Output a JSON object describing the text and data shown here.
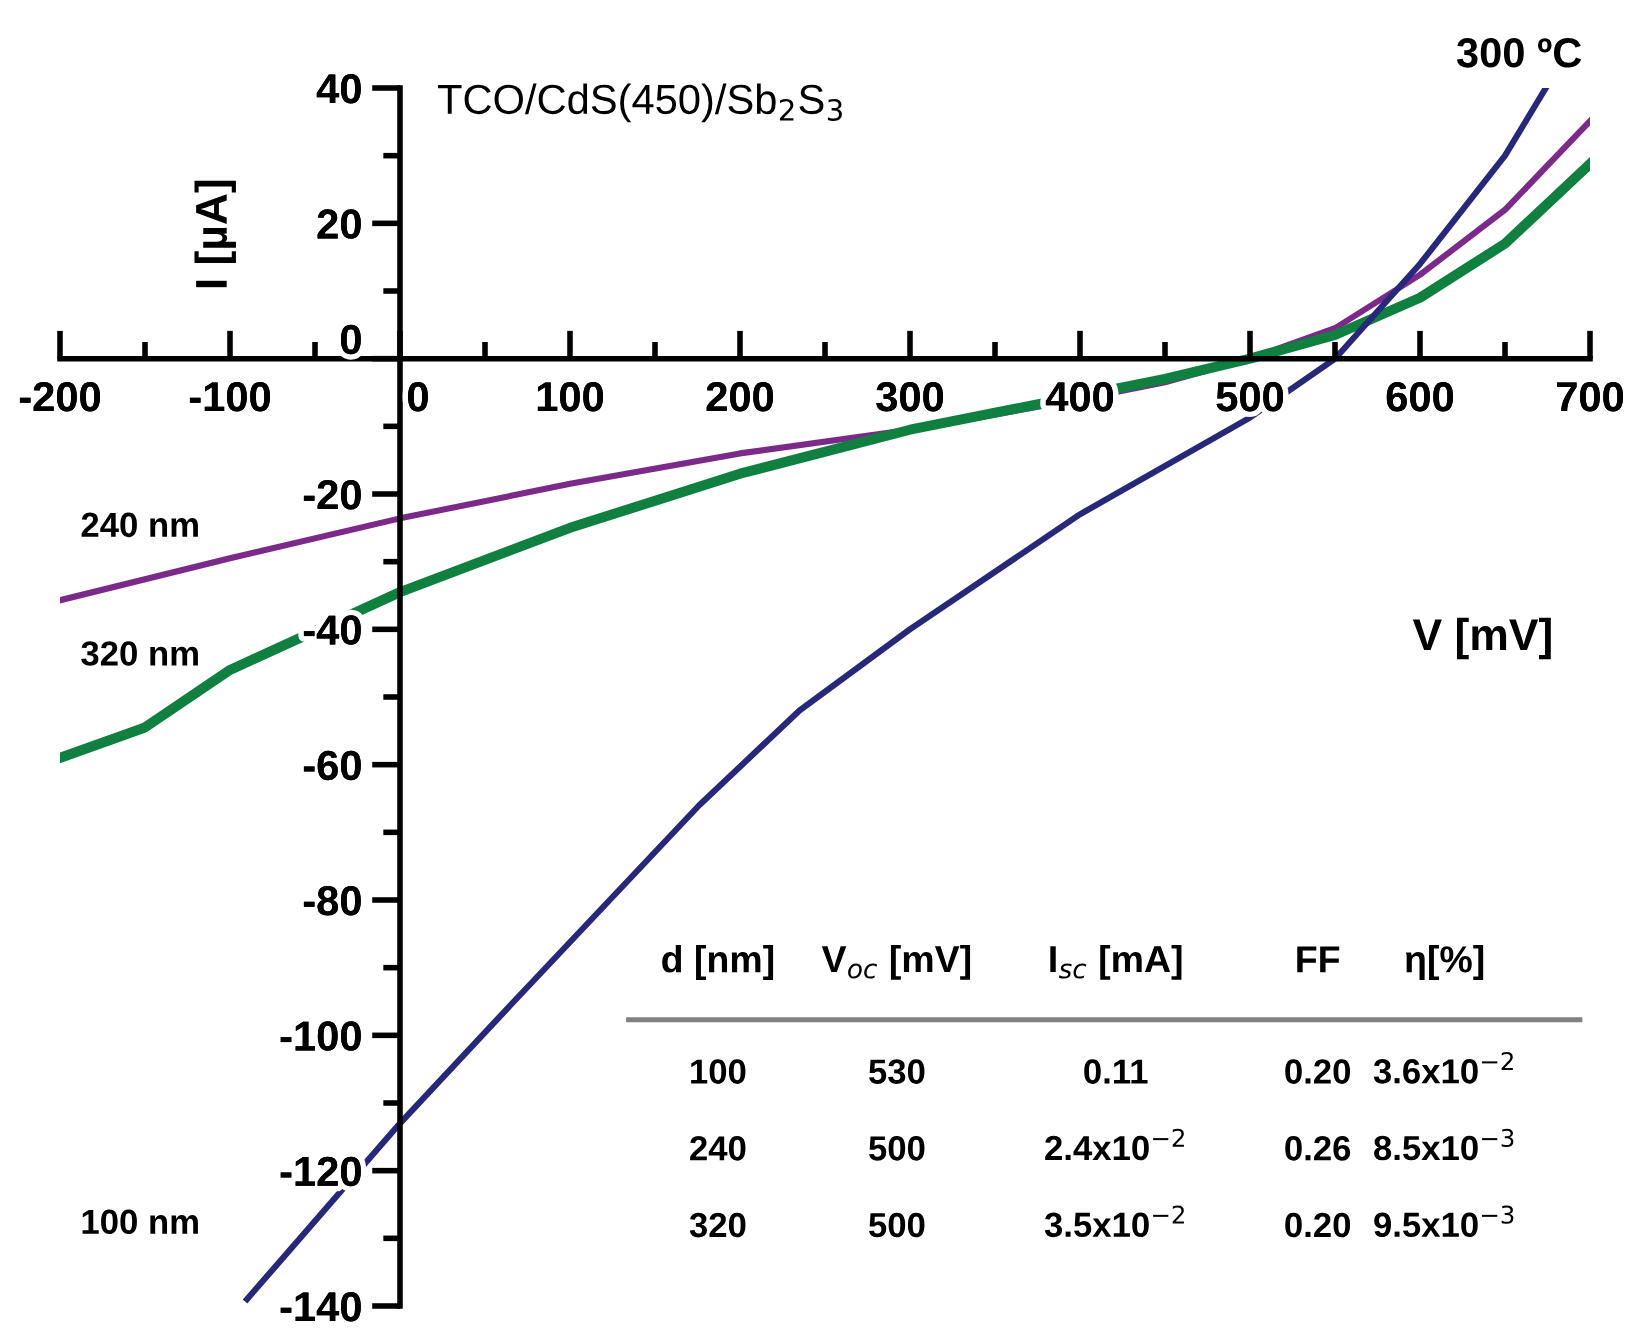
{
  "chart_data": {
    "type": "line",
    "title": "TCO/CdS(450)/Sb$_{2}$S$_{3}$",
    "xlabel": "V [mV]",
    "ylabel": "I [µA]",
    "xlim": [
      -200,
      700
    ],
    "ylim": [
      -140,
      40
    ],
    "xticks": [
      -200,
      -100,
      0,
      100,
      200,
      300,
      400,
      500,
      600,
      700
    ],
    "yticks": [
      -140,
      -120,
      -100,
      -80,
      -60,
      -40,
      -20,
      0,
      20,
      40
    ],
    "grid": false,
    "marker": "none",
    "line_style": "solid",
    "series": [
      {
        "name": "240 nm",
        "color": "#7b2a8a",
        "x": [
          -200,
          -100,
          0,
          100,
          200,
          300,
          400,
          450,
          500,
          550,
          600,
          650,
          700
        ],
        "values": [
          -35.7,
          -29.5,
          -23.6,
          -18.5,
          -14,
          -10.5,
          -6,
          -3.5,
          0,
          4.5,
          12.4,
          22,
          35.1
        ]
      },
      {
        "name": "320 nm",
        "color": "#108040",
        "x": [
          -200,
          -150,
          -100,
          0,
          100,
          200,
          300,
          400,
          450,
          500,
          550,
          600,
          650,
          700
        ],
        "values": [
          -59,
          -54.5,
          -46,
          -34.5,
          -25,
          -17,
          -10.5,
          -5.5,
          -3,
          0,
          3.5,
          9,
          17,
          28.8
        ]
      },
      {
        "name": "100 nm",
        "color": "#28287a",
        "x": [
          -90,
          0,
          67,
          176,
          235,
          300,
          400,
          500,
          550,
          600,
          650,
          674
        ],
        "values": [
          -139,
          -113,
          -95,
          -66,
          -52,
          -40,
          -23,
          -8.7,
          0,
          14,
          30,
          40
        ]
      }
    ],
    "annotations": [
      "300 ºC",
      "d [nm]",
      "V$_{oc}$ [mV]",
      "I$_{sc}$ [mA]",
      "FF",
      "η[%]",
      "100",
      "530",
      "0.11",
      "0.20",
      "3.6x10$^{−2}$",
      "240",
      "500",
      "2.4x10$^{−2}$",
      "0.26",
      "8.5x10$^{−3}$",
      "320",
      "500",
      "3.5x10$^{−2}$",
      "0.20",
      "9.5x10$^{−3}$"
    ]
  }
}
